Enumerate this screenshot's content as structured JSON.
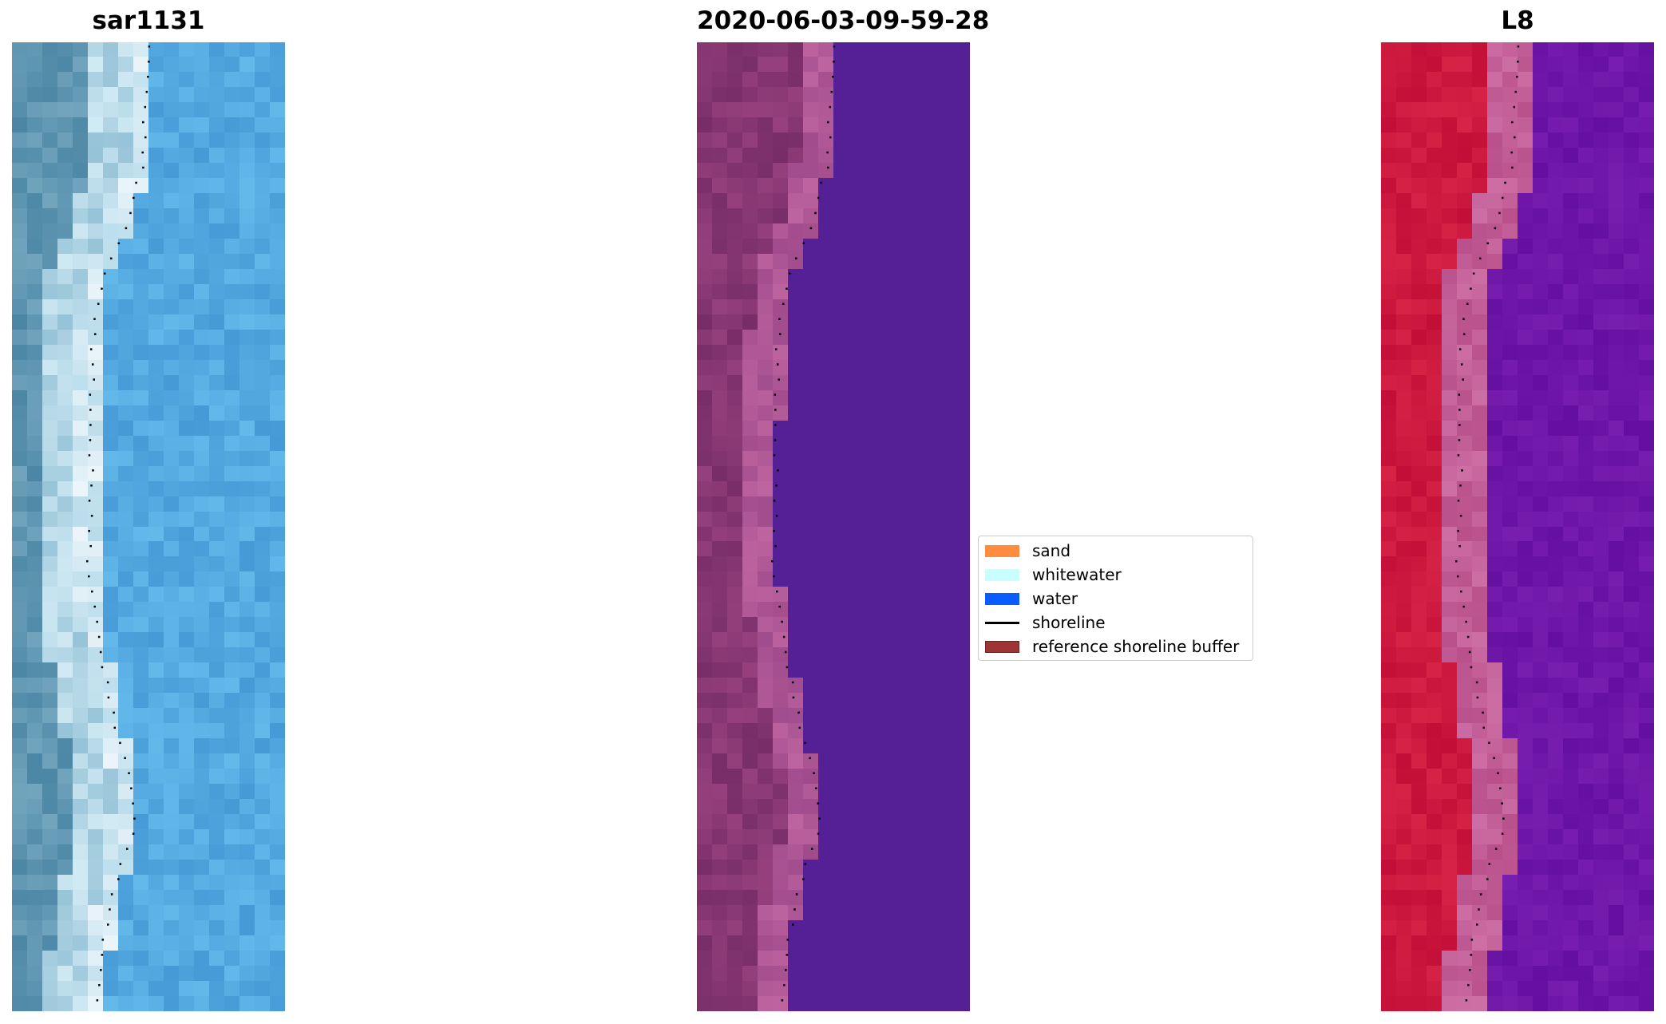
{
  "panels": [
    {
      "title": "sar1131",
      "kind": "rgb"
    },
    {
      "title": "2020-06-03-09-59-28",
      "kind": "classified"
    },
    {
      "title": "L8",
      "kind": "index"
    }
  ],
  "legend": {
    "items": [
      {
        "label": "sand",
        "color": "#ff8c3f"
      },
      {
        "label": "whitewater",
        "color": "#c8ffff"
      },
      {
        "label": "water",
        "color": "#0a5cff"
      },
      {
        "label": "shoreline",
        "color": "#000000",
        "type": "line"
      },
      {
        "label": "reference shoreline buffer",
        "color": "#9e3535",
        "edge": "#7a1f1f"
      }
    ]
  }
}
